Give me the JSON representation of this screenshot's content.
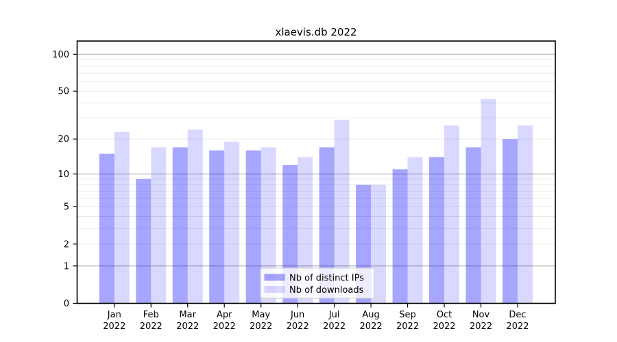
{
  "title": "xlaevis.db 2022",
  "chart_data": {
    "type": "bar",
    "title": "xlaevis.db 2022",
    "categories": [
      "Jan",
      "Feb",
      "Mar",
      "Apr",
      "May",
      "Jun",
      "Jul",
      "Aug",
      "Sep",
      "Oct",
      "Nov",
      "Dec"
    ],
    "year_label": "2022",
    "series": [
      {
        "name": "Nb of distinct IPs",
        "base_color": "#0000ff",
        "alpha": 0.35,
        "blended_color": "#a6a6ff",
        "values": [
          15,
          9,
          17,
          16,
          16,
          12,
          17,
          8,
          11,
          14,
          17,
          20
        ]
      },
      {
        "name": "Nb of downloads",
        "base_color": "#0000ff",
        "alpha": 0.15,
        "blended_color": "#d9d9ff",
        "values": [
          23,
          17,
          24,
          19,
          17,
          14,
          29,
          8,
          14,
          26,
          43,
          26
        ]
      }
    ],
    "yscale": "log1p",
    "yticks": [
      0,
      1,
      2,
      5,
      10,
      20,
      50,
      100
    ],
    "ylim": [
      0,
      128
    ],
    "grid": {
      "major_lines": [
        1,
        10,
        100
      ],
      "minor_lines": [
        2,
        3,
        4,
        5,
        6,
        7,
        8,
        9,
        20,
        30,
        40,
        50,
        60,
        70,
        80,
        90
      ]
    },
    "legend_position": "lower center"
  },
  "colors": {
    "background": "#ffffff",
    "text": "#000000",
    "spine": "#000000",
    "grid_major": "#b3b3b3",
    "grid_minor": "#e9e9e9",
    "legend_bg": "rgba(255,255,255,0.8)",
    "legend_border": "#cccccc"
  }
}
